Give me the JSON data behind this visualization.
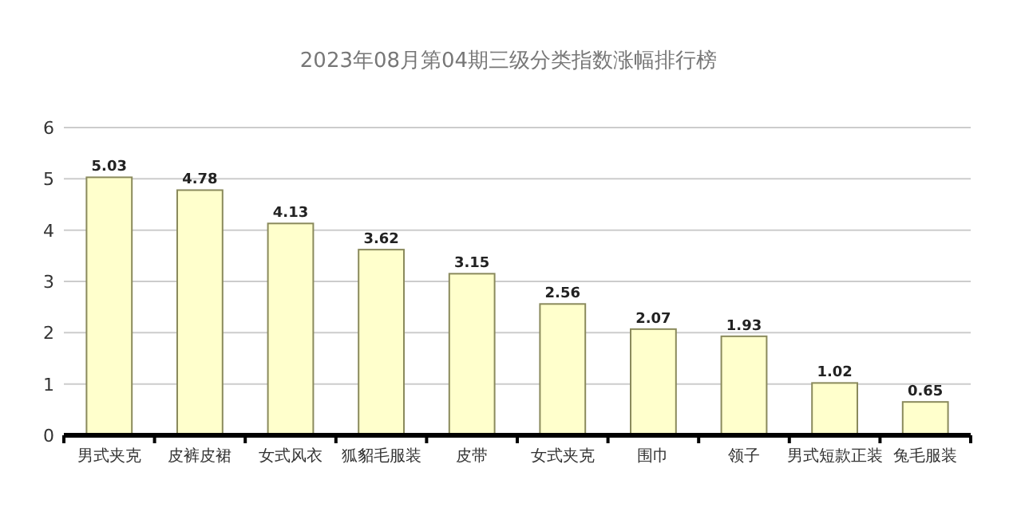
{
  "chart_data": {
    "type": "bar",
    "title": "2023年08月第04期三级分类指数涨幅排行榜",
    "categories": [
      "男式夹克",
      "皮裤皮裙",
      "女式风衣",
      "狐貂毛服装",
      "皮带",
      "女式夹克",
      "围巾",
      "领子",
      "男式短款正装",
      "兔毛服装"
    ],
    "values": [
      5.03,
      4.78,
      4.13,
      3.62,
      3.15,
      2.56,
      2.07,
      1.93,
      1.02,
      0.65
    ],
    "color": "#ffffcc",
    "ylim": [
      0,
      6
    ],
    "yticks": [
      0,
      1,
      2,
      3,
      4,
      5,
      6
    ],
    "grid": "y",
    "data_labels": true
  }
}
